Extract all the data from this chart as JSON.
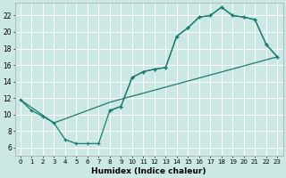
{
  "xlabel": "Humidex (Indice chaleur)",
  "xlim": [
    -0.5,
    23.5
  ],
  "ylim": [
    5.0,
    23.5
  ],
  "xticks": [
    0,
    1,
    2,
    3,
    4,
    5,
    6,
    7,
    8,
    9,
    10,
    11,
    12,
    13,
    14,
    15,
    16,
    17,
    18,
    19,
    20,
    21,
    22,
    23
  ],
  "yticks": [
    6,
    8,
    10,
    12,
    14,
    16,
    18,
    20,
    22
  ],
  "bg_color": "#cce8e5",
  "line_color": "#1a7a6e",
  "grid_color": "#ffffff",
  "line1_x": [
    0,
    1,
    2,
    3,
    4,
    5,
    6,
    7,
    8,
    9,
    10,
    11,
    12,
    13,
    14,
    15,
    16,
    17,
    18,
    19,
    20,
    21,
    22,
    23
  ],
  "line1_y": [
    11.8,
    10.5,
    9.8,
    9.0,
    7.0,
    6.5,
    6.5,
    6.5,
    10.5,
    11.0,
    14.5,
    15.2,
    15.5,
    15.7,
    19.5,
    20.5,
    21.8,
    22.0,
    23.0,
    22.0,
    21.8,
    21.5,
    18.5,
    17.0
  ],
  "line2_x": [
    0,
    3,
    8,
    23
  ],
  "line2_y": [
    11.8,
    9.0,
    11.5,
    17.0
  ],
  "line3_x": [
    8,
    9,
    10,
    11,
    12,
    13,
    14,
    15,
    16,
    17,
    18,
    19,
    20,
    21,
    22,
    23
  ],
  "line3_y": [
    10.5,
    11.0,
    14.5,
    15.2,
    15.5,
    15.7,
    19.5,
    20.5,
    21.8,
    22.0,
    23.0,
    22.0,
    21.8,
    21.5,
    18.5,
    17.0
  ]
}
